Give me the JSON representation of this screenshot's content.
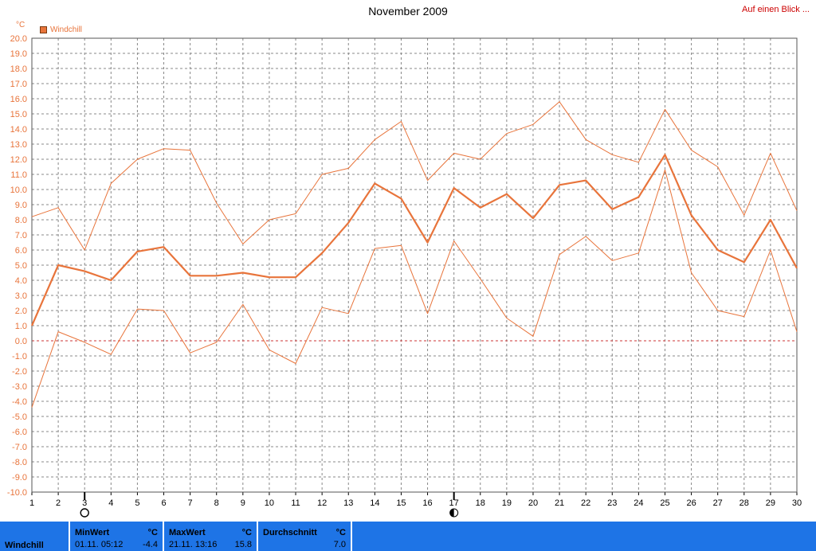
{
  "header": {
    "title": "November 2009",
    "link_label": "Auf einen Blick ..."
  },
  "legend": {
    "label": "Windchill",
    "color": "#e8743b"
  },
  "chart_data": {
    "type": "line",
    "title": "November 2009",
    "ylabel": "°C",
    "ylim": [
      -10,
      20
    ],
    "ytick_step": 1,
    "x": [
      1,
      2,
      3,
      4,
      5,
      6,
      7,
      8,
      9,
      10,
      11,
      12,
      13,
      14,
      15,
      16,
      17,
      18,
      19,
      20,
      21,
      22,
      23,
      24,
      25,
      26,
      27,
      28,
      29,
      30
    ],
    "series": [
      {
        "name": "Windchill",
        "values": [
          1.0,
          5.0,
          4.6,
          4.0,
          5.9,
          6.2,
          4.3,
          4.3,
          4.5,
          4.2,
          4.2,
          5.8,
          7.8,
          10.4,
          9.4,
          6.5,
          10.1,
          8.8,
          9.7,
          8.1,
          10.3,
          10.6,
          8.7,
          9.5,
          12.3,
          8.3,
          6.0,
          5.2,
          8.0,
          4.8
        ],
        "color": "#e8743b",
        "emphasis": "bold"
      },
      {
        "values": [
          8.2,
          8.8,
          6.0,
          10.4,
          12.0,
          12.7,
          12.6,
          9.1,
          6.4,
          8.0,
          8.4,
          11.0,
          11.4,
          13.3,
          14.5,
          10.6,
          12.4,
          12.0,
          13.7,
          14.3,
          15.8,
          13.3,
          12.3,
          11.8,
          15.3,
          12.6,
          11.5,
          8.3,
          12.4,
          8.6
        ],
        "color": "#e8743b",
        "emphasis": "thin"
      },
      {
        "values": [
          -4.4,
          0.6,
          -0.1,
          -0.9,
          2.1,
          2.0,
          -0.8,
          -0.1,
          2.4,
          -0.6,
          -1.5,
          2.2,
          1.8,
          6.1,
          6.3,
          1.8,
          6.6,
          4.1,
          1.5,
          0.3,
          5.7,
          6.9,
          5.3,
          5.8,
          11.3,
          4.5,
          2.0,
          1.6,
          6.0,
          0.6
        ],
        "color": "#e8743b",
        "emphasis": "thin"
      }
    ],
    "zero_line_color": "#cc3333",
    "grid": true,
    "markers": [
      {
        "x": 3,
        "symbol": "new-moon-outline"
      },
      {
        "x": 17,
        "symbol": "half-moon"
      }
    ]
  },
  "footer": {
    "series_label": "Windchill",
    "min_label": "MinWert",
    "min_unit": "°C",
    "min_date": "01.11.  05:12",
    "min_value": "-4.4",
    "max_label": "MaxWert",
    "max_unit": "°C",
    "max_date": "21.11.  13:16",
    "max_value": "15.8",
    "avg_label": "Durchschnitt",
    "avg_unit": "°C",
    "avg_value": "7.0",
    "bg_color": "#1e74e6"
  }
}
